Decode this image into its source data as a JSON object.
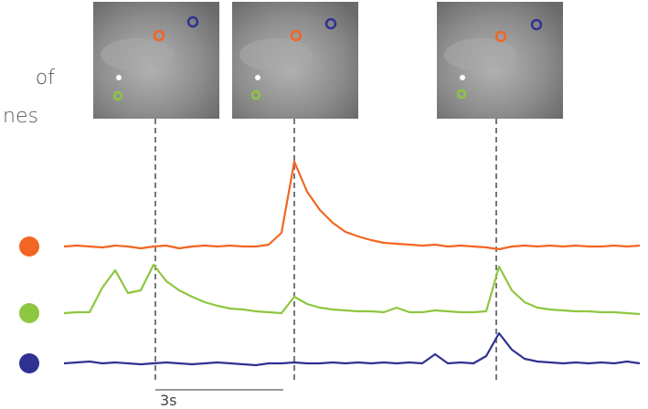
{
  "chart_data": {
    "type": "line",
    "labels": [
      "of",
      "nes"
    ],
    "scale_label": "3s",
    "x": [
      0,
      0.3,
      0.6,
      0.9,
      1.2,
      1.5,
      1.8,
      2.1,
      2.4,
      2.7,
      3,
      3.3,
      3.6,
      3.9,
      4.2,
      4.5,
      4.8,
      5.1,
      5.4,
      5.7,
      6,
      6.3,
      6.6,
      6.9,
      7.2,
      7.5,
      7.8,
      8.1,
      8.4,
      8.7,
      9,
      9.3,
      9.6,
      9.9,
      10.2,
      10.5,
      10.8,
      11.1,
      11.4,
      11.7,
      12,
      12.3,
      12.6,
      12.9,
      13.2,
      13.5
    ],
    "series": [
      {
        "color": "#f26522",
        "values": [
          0,
          0.1,
          0,
          -0.1,
          0.1,
          0,
          -0.2,
          0,
          0.1,
          -0.2,
          0,
          0.1,
          0,
          0.1,
          0,
          0,
          0.2,
          1.5,
          9.3,
          6,
          4,
          2.6,
          1.6,
          1.1,
          0.7,
          0.4,
          0.3,
          0.2,
          0.1,
          0.2,
          0,
          0.1,
          0,
          -0.1,
          -0.3,
          0,
          0.1,
          0,
          0.1,
          0,
          0.1,
          0,
          0,
          0.1,
          0,
          0.1
        ]
      },
      {
        "color": "#8dc63f",
        "values": [
          0,
          0.1,
          0.1,
          2.8,
          4.7,
          2.2,
          2.5,
          5.3,
          3.5,
          2.5,
          1.8,
          1.2,
          0.8,
          0.5,
          0.4,
          0.2,
          0.1,
          0,
          1.8,
          1,
          0.6,
          0.4,
          0.3,
          0.2,
          0.2,
          0.1,
          0.6,
          0.1,
          0.1,
          0.3,
          0.2,
          0.1,
          0.1,
          0.2,
          5.1,
          2.5,
          1.2,
          0.6,
          0.4,
          0.3,
          0.2,
          0.2,
          0.1,
          0.1,
          0,
          -0.1
        ]
      },
      {
        "color": "#2e3192",
        "values": [
          0,
          0.1,
          0.2,
          0,
          0.1,
          0,
          -0.1,
          0,
          0.1,
          0,
          -0.1,
          0,
          0.1,
          0,
          -0.1,
          -0.2,
          0,
          0,
          0.1,
          0,
          0,
          0.1,
          0,
          0.1,
          0,
          0.1,
          0,
          0.1,
          0,
          1,
          0,
          0.1,
          0,
          0.8,
          3.3,
          1.5,
          0.5,
          0.2,
          0.1,
          0,
          0.1,
          0,
          0.1,
          0,
          0.2,
          0
        ]
      }
    ]
  }
}
